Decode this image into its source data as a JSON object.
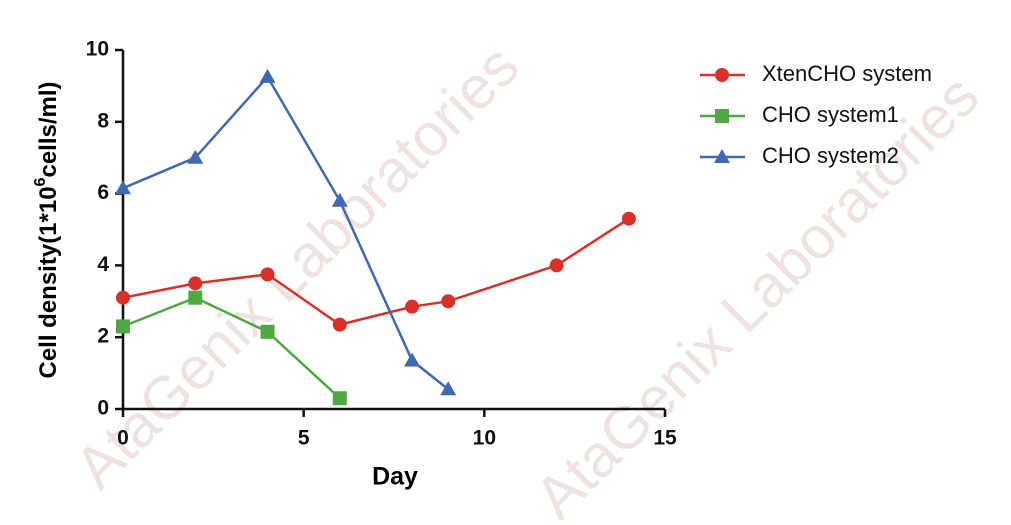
{
  "chart_data": {
    "type": "line",
    "xlabel": "Day",
    "ylabel_parts": [
      "Cell density(1*10",
      "6",
      "cells/ml)"
    ],
    "watermark": "AtaGenix Laboratories",
    "xlim": [
      0,
      15
    ],
    "xticks": [
      0,
      5,
      10,
      15
    ],
    "ylim": [
      0,
      10
    ],
    "yticks": [
      0,
      2,
      4,
      6,
      8,
      10
    ],
    "legend": "right",
    "series": [
      {
        "name": "XtenCHO system",
        "color": "#d9302a",
        "marker": "circle",
        "x": [
          0,
          2,
          4,
          6,
          8,
          9,
          12,
          14
        ],
        "values": [
          3.1,
          3.5,
          3.75,
          2.35,
          2.85,
          3.0,
          4.0,
          5.3
        ]
      },
      {
        "name": "CHO system1",
        "color": "#4ea843",
        "marker": "square",
        "x": [
          0,
          2,
          4,
          6
        ],
        "values": [
          2.3,
          3.1,
          2.15,
          0.3
        ]
      },
      {
        "name": "CHO system2",
        "color": "#4169b0",
        "marker": "triangle",
        "x": [
          0,
          2,
          4,
          6,
          8,
          9
        ],
        "values": [
          6.15,
          7.0,
          9.25,
          5.8,
          1.35,
          0.55
        ]
      }
    ]
  }
}
